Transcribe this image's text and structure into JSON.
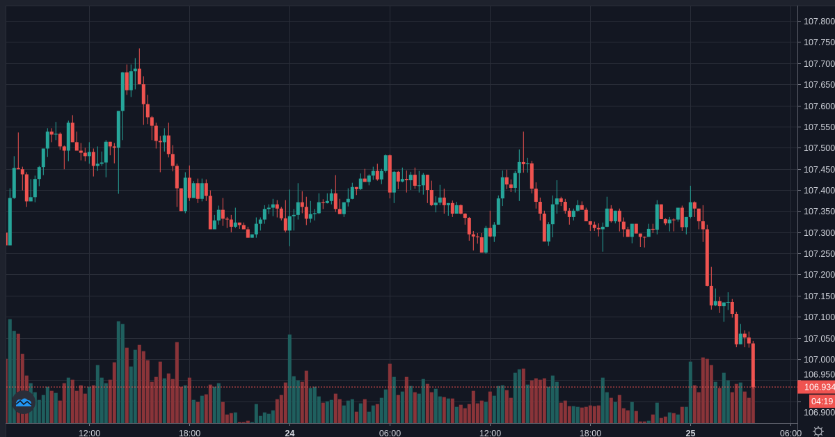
{
  "chart_data": {
    "type": "candlestick",
    "interval_minutes": 15,
    "colors": {
      "up": "#26a69a",
      "down": "#ef5350",
      "up_volume": "#1f5f5e",
      "down_volume": "#8a3439",
      "background": "#131722",
      "grid": "#2a2e39",
      "axis_text": "#d1d4dc"
    },
    "y_axis": {
      "range": [
        106.88,
        107.835
      ],
      "ticks": [
        "107.800",
        "107.750",
        "107.700",
        "107.650",
        "107.600",
        "107.550",
        "107.500",
        "107.450",
        "107.400",
        "107.350",
        "107.300",
        "107.250",
        "107.200",
        "107.150",
        "107.100",
        "107.050",
        "107.000",
        "106.950",
        "106.900"
      ]
    },
    "x_axis": {
      "time_labels": [
        {
          "label": "12:00",
          "bar": 20,
          "bold": false
        },
        {
          "label": "18:00",
          "bar": 44,
          "bold": false
        },
        {
          "label": "24",
          "bar": 68,
          "bold": true
        },
        {
          "label": "06:00",
          "bar": 92,
          "bold": false
        },
        {
          "label": "12:00",
          "bar": 116,
          "bold": false
        },
        {
          "label": "18:00",
          "bar": 140,
          "bold": false
        },
        {
          "label": "25",
          "bar": 164,
          "bold": true
        },
        {
          "label": "06:00",
          "bar": 188,
          "bold": false
        }
      ]
    },
    "first_open": 107.299,
    "close": [
      107.269,
      107.381,
      107.452,
      107.449,
      107.437,
      107.373,
      107.383,
      107.426,
      107.454,
      107.498,
      107.538,
      107.531,
      107.533,
      107.503,
      107.493,
      107.559,
      107.513,
      107.493,
      107.488,
      107.48,
      107.49,
      107.457,
      107.462,
      107.465,
      107.514,
      107.503,
      107.5,
      107.587,
      107.678,
      107.636,
      107.681,
      107.687,
      107.65,
      107.603,
      107.572,
      107.552,
      107.516,
      107.513,
      107.529,
      107.485,
      107.457,
      107.404,
      107.35,
      107.429,
      107.381,
      107.416,
      107.379,
      107.416,
      107.386,
      107.307,
      107.328,
      107.353,
      107.332,
      107.33,
      107.313,
      107.323,
      107.317,
      107.307,
      107.287,
      107.295,
      107.32,
      107.33,
      107.355,
      107.358,
      107.366,
      107.356,
      107.333,
      107.304,
      107.338,
      107.341,
      107.371,
      107.36,
      107.332,
      107.343,
      107.345,
      107.371,
      107.369,
      107.374,
      107.392,
      107.355,
      107.343,
      107.371,
      107.379,
      107.407,
      107.402,
      107.427,
      107.419,
      107.434,
      107.445,
      107.425,
      107.445,
      107.482,
      107.394,
      107.443,
      107.42,
      107.426,
      107.423,
      107.436,
      107.41,
      107.411,
      107.436,
      107.4,
      107.364,
      107.37,
      107.382,
      107.364,
      107.369,
      107.344,
      107.364,
      107.344,
      107.334,
      107.295,
      107.29,
      107.288,
      107.252,
      107.31,
      107.29,
      107.318,
      107.38,
      107.43,
      107.413,
      107.405,
      107.44,
      107.466,
      107.461,
      107.463,
      107.403,
      107.372,
      107.344,
      107.278,
      107.319,
      107.366,
      107.38,
      107.372,
      107.351,
      107.336,
      107.351,
      107.364,
      107.353,
      107.326,
      107.318,
      107.31,
      107.307,
      107.313,
      107.356,
      107.326,
      107.351,
      107.325,
      107.307,
      107.289,
      107.32,
      107.297,
      107.289,
      107.289,
      107.308,
      107.306,
      107.366,
      107.331,
      107.321,
      107.33,
      107.33,
      107.358,
      107.312,
      107.336,
      107.371,
      107.356,
      107.326,
      107.307,
      107.173,
      107.127,
      107.137,
      107.125,
      107.134,
      107.135,
      107.107,
      107.035,
      107.06,
      107.051,
      107.037,
      106.934
    ],
    "high": [
      107.299,
      107.404,
      107.48,
      107.536,
      107.455,
      107.442,
      107.426,
      107.434,
      107.457,
      107.498,
      107.546,
      107.546,
      107.561,
      107.536,
      107.505,
      107.564,
      107.577,
      107.538,
      107.511,
      107.5,
      107.513,
      107.498,
      107.503,
      107.491,
      107.518,
      107.514,
      107.511,
      107.587,
      107.679,
      107.697,
      107.697,
      107.712,
      107.735,
      107.669,
      107.625,
      107.575,
      107.559,
      107.528,
      107.546,
      107.559,
      107.506,
      107.462,
      107.404,
      107.442,
      107.458,
      107.421,
      107.427,
      107.427,
      107.425,
      107.399,
      107.341,
      107.363,
      107.381,
      107.336,
      107.341,
      107.358,
      107.323,
      107.323,
      107.313,
      107.295,
      107.335,
      107.335,
      107.364,
      107.366,
      107.379,
      107.376,
      107.36,
      107.376,
      107.401,
      107.355,
      107.416,
      107.397,
      107.384,
      107.374,
      107.355,
      107.392,
      107.378,
      107.392,
      107.402,
      107.435,
      107.379,
      107.371,
      107.404,
      107.417,
      107.407,
      107.439,
      107.45,
      107.437,
      107.455,
      107.462,
      107.45,
      107.484,
      107.484,
      107.445,
      107.445,
      107.453,
      107.446,
      107.443,
      107.453,
      107.445,
      107.44,
      107.436,
      107.422,
      107.385,
      107.412,
      107.403,
      107.369,
      107.375,
      107.372,
      107.366,
      107.345,
      107.336,
      107.303,
      107.298,
      107.298,
      107.315,
      107.351,
      107.324,
      107.387,
      107.446,
      107.448,
      107.425,
      107.445,
      107.496,
      107.538,
      107.476,
      107.469,
      107.418,
      107.382,
      107.351,
      107.324,
      107.387,
      107.423,
      107.384,
      107.379,
      107.357,
      107.356,
      107.376,
      107.373,
      107.358,
      107.326,
      107.325,
      107.321,
      107.323,
      107.384,
      107.364,
      107.351,
      107.356,
      107.335,
      107.313,
      107.32,
      107.32,
      107.297,
      107.29,
      107.32,
      107.32,
      107.376,
      107.366,
      107.333,
      107.336,
      107.333,
      107.358,
      107.363,
      107.336,
      107.41,
      107.373,
      107.356,
      107.364,
      107.318,
      107.218,
      107.167,
      107.147,
      107.134,
      107.158,
      107.142,
      107.112,
      107.083,
      107.068,
      107.065,
      107.043
    ],
    "low": [
      107.269,
      107.269,
      107.379,
      107.449,
      107.399,
      107.36,
      107.373,
      107.371,
      107.409,
      107.435,
      107.478,
      107.513,
      107.518,
      107.495,
      107.449,
      107.468,
      107.513,
      107.493,
      107.47,
      107.468,
      107.462,
      107.432,
      107.445,
      107.457,
      107.43,
      107.482,
      107.463,
      107.391,
      107.518,
      107.625,
      107.62,
      107.638,
      107.65,
      107.554,
      107.556,
      107.518,
      107.498,
      107.442,
      107.491,
      107.477,
      107.444,
      107.36,
      107.35,
      107.345,
      107.374,
      107.381,
      107.369,
      107.373,
      107.374,
      107.307,
      107.307,
      107.318,
      107.315,
      107.31,
      107.3,
      107.31,
      107.308,
      107.307,
      107.287,
      107.287,
      107.287,
      107.304,
      107.32,
      107.343,
      107.338,
      107.335,
      107.328,
      107.3,
      107.267,
      107.304,
      107.33,
      107.345,
      107.317,
      107.323,
      107.328,
      107.343,
      107.355,
      107.368,
      107.366,
      107.348,
      107.343,
      107.336,
      107.361,
      107.378,
      107.388,
      107.4,
      107.419,
      107.411,
      107.424,
      107.422,
      107.414,
      107.441,
      107.38,
      107.369,
      107.402,
      107.418,
      107.394,
      107.4,
      107.403,
      107.394,
      107.389,
      107.369,
      107.362,
      107.347,
      107.364,
      107.344,
      107.339,
      107.336,
      107.344,
      107.342,
      107.318,
      107.28,
      107.257,
      107.273,
      107.252,
      107.249,
      107.288,
      107.277,
      107.318,
      107.362,
      107.402,
      107.395,
      107.394,
      107.374,
      107.441,
      107.441,
      107.392,
      107.356,
      107.328,
      107.278,
      107.268,
      107.288,
      107.344,
      107.362,
      107.344,
      107.318,
      107.328,
      107.349,
      107.353,
      107.326,
      107.303,
      107.303,
      107.29,
      107.254,
      107.312,
      107.323,
      107.321,
      107.302,
      107.289,
      107.289,
      107.274,
      107.297,
      107.265,
      107.264,
      107.289,
      107.298,
      107.295,
      107.331,
      107.317,
      107.302,
      107.302,
      107.325,
      107.303,
      107.295,
      107.333,
      107.336,
      107.307,
      107.277,
      107.172,
      107.117,
      107.125,
      107.109,
      107.088,
      107.116,
      107.098,
      107.028,
      107.035,
      107.028,
      107.027,
      106.93
    ],
    "volume_relative": [
      277,
      448,
      397,
      385,
      298,
      205,
      172,
      133,
      100,
      121,
      157,
      139,
      130,
      97,
      172,
      196,
      187,
      139,
      163,
      127,
      157,
      163,
      250,
      196,
      172,
      187,
      262,
      439,
      427,
      325,
      244,
      316,
      337,
      310,
      271,
      178,
      199,
      265,
      193,
      214,
      190,
      349,
      157,
      163,
      196,
      100,
      91,
      118,
      124,
      166,
      157,
      172,
      91,
      37,
      43,
      46,
      4,
      4,
      10,
      4,
      82,
      31,
      46,
      40,
      55,
      103,
      121,
      175,
      382,
      202,
      184,
      178,
      226,
      151,
      157,
      115,
      88,
      94,
      100,
      127,
      103,
      76,
      97,
      103,
      49,
      85,
      103,
      49,
      76,
      82,
      109,
      145,
      256,
      199,
      121,
      136,
      199,
      160,
      133,
      127,
      190,
      169,
      133,
      148,
      115,
      112,
      106,
      106,
      70,
      79,
      64,
      82,
      139,
      85,
      97,
      91,
      136,
      118,
      160,
      163,
      142,
      109,
      217,
      232,
      235,
      166,
      184,
      193,
      187,
      193,
      157,
      205,
      178,
      88,
      97,
      73,
      73,
      70,
      67,
      70,
      76,
      73,
      76,
      196,
      133,
      109,
      91,
      121,
      64,
      55,
      91,
      52,
      7,
      7,
      10,
      37,
      88,
      22,
      28,
      46,
      43,
      37,
      70,
      70,
      265,
      163,
      133,
      283,
      277,
      250,
      178,
      151,
      217,
      184,
      133,
      169,
      175,
      136,
      109,
      190
    ],
    "current_price": {
      "value": "106.934",
      "countdown": "04:19"
    }
  },
  "logo": "TradingView",
  "settings_icon": "gear-icon"
}
